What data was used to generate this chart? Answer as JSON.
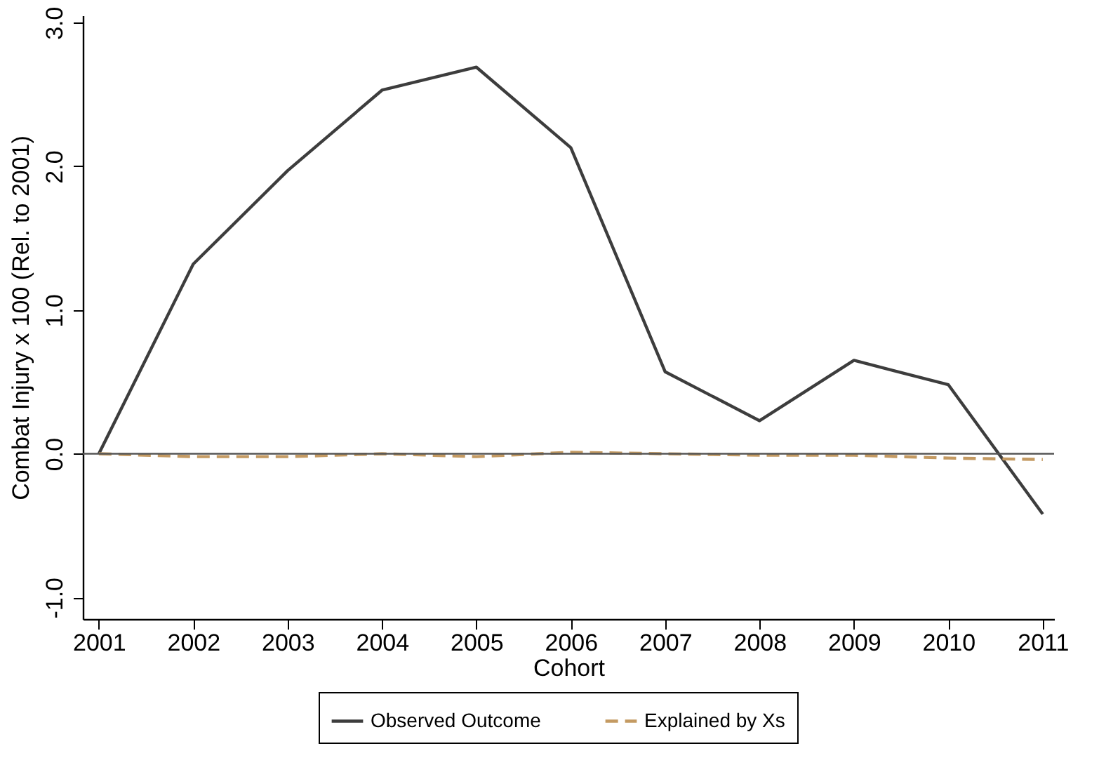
{
  "chart_data": {
    "type": "line",
    "xlabel": "Cohort",
    "ylabel": "Combat Injury x 100 (Rel. to 2001)",
    "x": [
      2001,
      2002,
      2003,
      2004,
      2005,
      2006,
      2007,
      2008,
      2009,
      2010,
      2011
    ],
    "series": [
      {
        "name": "Observed Outcome",
        "color": "#3d3d3d",
        "line_style": "solid",
        "values": [
          0,
          1.32,
          1.97,
          2.53,
          2.69,
          2.13,
          0.57,
          0.23,
          0.65,
          0.48,
          -0.42
        ]
      },
      {
        "name": "Explained by Xs",
        "color": "#c49a62",
        "line_style": "dashed",
        "values": [
          0,
          -0.02,
          -0.02,
          0.0,
          -0.02,
          0.01,
          0.0,
          -0.01,
          -0.01,
          -0.03,
          -0.04
        ]
      }
    ],
    "xlim": [
      2000.83,
      2011.12
    ],
    "ylim": [
      -1.15,
      3.05
    ],
    "xticks": [
      2001,
      2002,
      2003,
      2004,
      2005,
      2006,
      2007,
      2008,
      2009,
      2010,
      2011
    ],
    "yticks": [
      {
        "value": -1,
        "label": "-1.0"
      },
      {
        "value": 0,
        "label": "0.0"
      },
      {
        "value": 1,
        "label": "1.0"
      },
      {
        "value": 2,
        "label": "2.0"
      },
      {
        "value": 3,
        "label": "3.0"
      }
    ],
    "ref_lines": [
      {
        "axis": "y",
        "value": 0,
        "color": "#555555"
      }
    ],
    "grid": false,
    "legend": "bottom",
    "marker": "none"
  }
}
